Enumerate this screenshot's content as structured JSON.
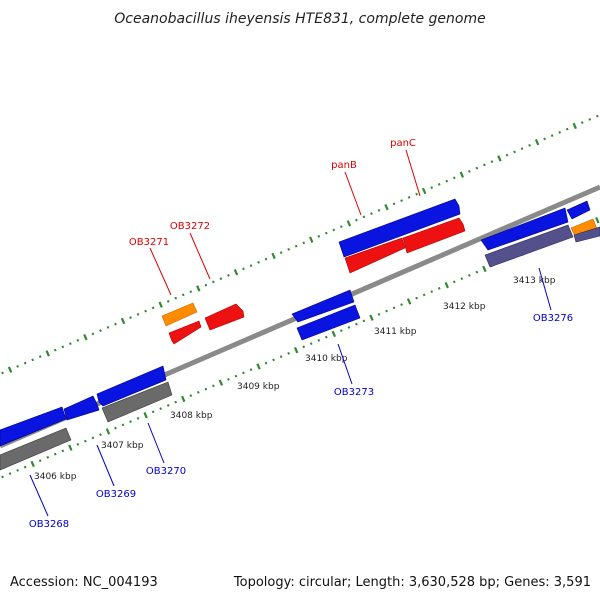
{
  "title": "Oceanobacillus iheyensis HTE831, complete genome",
  "footer": {
    "accession": "Accession: NC_004193",
    "topology": "Topology: circular; Length: 3,630,528 bp; Genes: 3,591"
  },
  "colors": {
    "backbone": "#8a8a8a",
    "tick_green": "#2f8a2f",
    "gene_blue": "#0a14e0",
    "gene_red": "#ee1111",
    "gene_orange": "#ff8c00",
    "gene_gray": "#6a6a6a",
    "gene_purple": "#54508c",
    "label_red": "#dd0000",
    "label_blue": "#0000cc"
  },
  "kbp_labels": [
    "3406 kbp",
    "3407 kbp",
    "3408 kbp",
    "3409 kbp",
    "3410 kbp",
    "3411 kbp",
    "3412 kbp",
    "3413 kbp"
  ],
  "gene_labels": [
    {
      "id": "panC",
      "strand": "forward"
    },
    {
      "id": "panB",
      "strand": "forward"
    },
    {
      "id": "OB3272",
      "strand": "forward"
    },
    {
      "id": "OB3271",
      "strand": "forward"
    },
    {
      "id": "OB3276",
      "strand": "reverse"
    },
    {
      "id": "OB3273",
      "strand": "reverse"
    },
    {
      "id": "OB3270",
      "strand": "reverse"
    },
    {
      "id": "OB3269",
      "strand": "reverse"
    },
    {
      "id": "OB3268",
      "strand": "reverse"
    }
  ]
}
